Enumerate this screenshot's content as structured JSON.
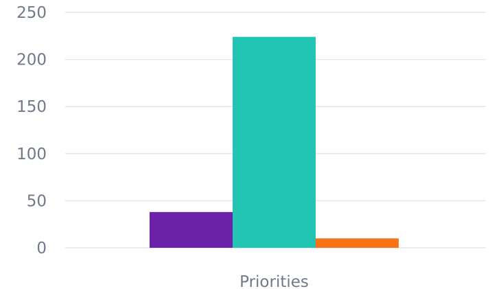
{
  "chart_data": {
    "type": "bar",
    "categories": [
      "Priorities"
    ],
    "series": [
      {
        "values": [
          38
        ],
        "color": "#6b21a8"
      },
      {
        "values": [
          224
        ],
        "color": "#22c4b4"
      },
      {
        "values": [
          10
        ],
        "color": "#f97316"
      }
    ],
    "ylim": [
      0,
      250
    ],
    "yticks": [
      0,
      50,
      100,
      150,
      200,
      250
    ],
    "grid": true,
    "legend": "none"
  }
}
